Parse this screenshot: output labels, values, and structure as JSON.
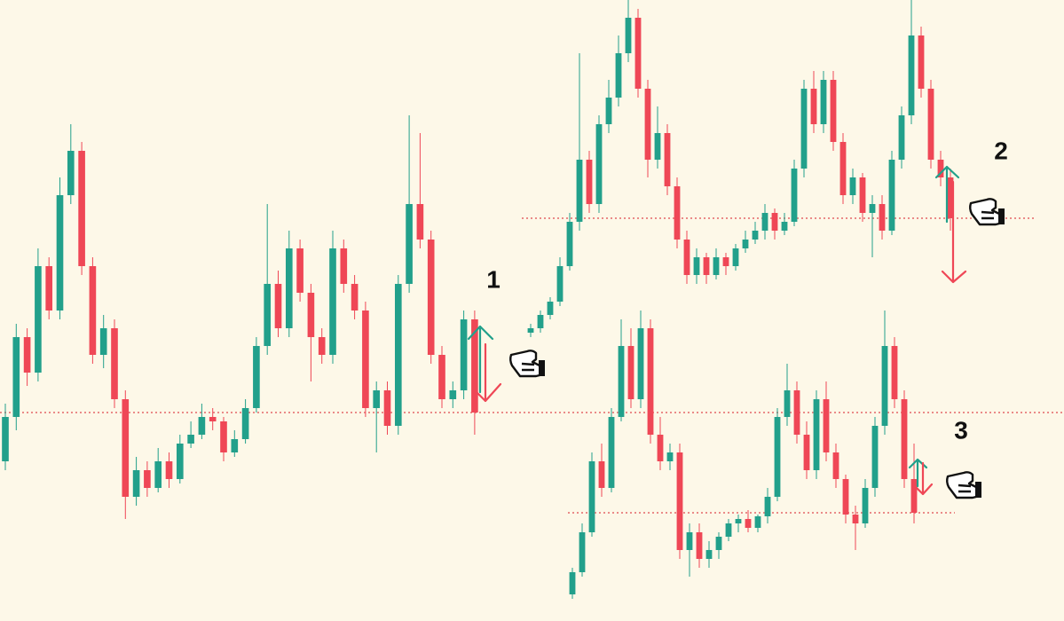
{
  "chart_data": {
    "type": "candlestick",
    "up_color": "#22a08b",
    "down_color": "#ef4756",
    "level_color": "#e0474f",
    "levels": [
      235,
      454,
      122
    ],
    "annotations": [
      "1",
      "2",
      "3"
    ],
    "series": [
      {
        "values": [
          [
            180,
            245,
            170,
            230
          ],
          [
            230,
            335,
            215,
            320
          ],
          [
            320,
            330,
            265,
            280
          ],
          [
            280,
            420,
            270,
            400
          ],
          [
            400,
            410,
            340,
            350
          ],
          [
            350,
            500,
            340,
            480
          ],
          [
            480,
            560,
            470,
            530
          ],
          [
            530,
            540,
            390,
            400
          ],
          [
            400,
            410,
            290,
            300
          ],
          [
            300,
            345,
            285,
            330
          ],
          [
            330,
            340,
            240,
            250
          ],
          [
            250,
            260,
            115,
            140
          ],
          [
            140,
            185,
            130,
            170
          ],
          [
            170,
            180,
            140,
            150
          ],
          [
            150,
            195,
            145,
            180
          ],
          [
            180,
            190,
            150,
            160
          ],
          [
            160,
            210,
            155,
            200
          ],
          [
            200,
            225,
            195,
            210
          ],
          [
            210,
            245,
            205,
            230
          ],
          [
            230,
            240,
            215,
            225
          ],
          [
            225,
            230,
            180,
            190
          ],
          [
            190,
            215,
            185,
            205
          ],
          [
            205,
            250,
            200,
            240
          ],
          [
            240,
            320,
            235,
            310
          ],
          [
            310,
            470,
            300,
            380
          ],
          [
            380,
            395,
            320,
            330
          ],
          [
            330,
            440,
            320,
            420
          ],
          [
            420,
            430,
            360,
            370
          ],
          [
            370,
            380,
            270,
            320
          ],
          [
            320,
            330,
            290,
            300
          ],
          [
            300,
            440,
            290,
            420
          ],
          [
            420,
            430,
            370,
            380
          ],
          [
            380,
            390,
            340,
            350
          ],
          [
            350,
            360,
            230,
            240
          ],
          [
            240,
            270,
            190,
            260
          ],
          [
            260,
            270,
            210,
            220
          ],
          [
            220,
            390,
            210,
            380
          ],
          [
            380,
            570,
            370,
            470
          ],
          [
            470,
            550,
            420,
            430
          ],
          [
            430,
            440,
            290,
            300
          ],
          [
            300,
            310,
            240,
            250
          ],
          [
            250,
            270,
            240,
            260
          ],
          [
            260,
            350,
            250,
            340
          ],
          [
            340,
            350,
            210,
            235
          ]
        ]
      },
      {
        "values": [
          [
            325,
            335,
            320,
            330
          ],
          [
            330,
            350,
            325,
            345
          ],
          [
            345,
            365,
            340,
            360
          ],
          [
            360,
            410,
            355,
            400
          ],
          [
            400,
            460,
            395,
            450
          ],
          [
            450,
            640,
            440,
            520
          ],
          [
            520,
            530,
            460,
            470
          ],
          [
            470,
            570,
            460,
            560
          ],
          [
            560,
            610,
            550,
            590
          ],
          [
            590,
            660,
            580,
            640
          ],
          [
            640,
            700,
            630,
            680
          ],
          [
            680,
            690,
            590,
            600
          ],
          [
            600,
            610,
            500,
            520
          ],
          [
            520,
            580,
            510,
            550
          ],
          [
            550,
            560,
            480,
            490
          ],
          [
            490,
            500,
            420,
            430
          ],
          [
            430,
            440,
            380,
            390
          ],
          [
            390,
            420,
            380,
            410
          ],
          [
            410,
            415,
            380,
            390
          ],
          [
            390,
            420,
            385,
            410
          ],
          [
            410,
            415,
            390,
            400
          ],
          [
            400,
            425,
            395,
            420
          ],
          [
            420,
            440,
            415,
            430
          ],
          [
            430,
            450,
            425,
            440
          ],
          [
            440,
            470,
            430,
            460
          ],
          [
            460,
            465,
            430,
            440
          ],
          [
            440,
            460,
            435,
            450
          ],
          [
            450,
            520,
            445,
            510
          ],
          [
            510,
            610,
            500,
            600
          ],
          [
            600,
            620,
            550,
            560
          ],
          [
            560,
            620,
            550,
            610
          ],
          [
            610,
            620,
            530,
            540
          ],
          [
            540,
            550,
            470,
            480
          ],
          [
            480,
            510,
            470,
            500
          ],
          [
            500,
            505,
            450,
            460
          ],
          [
            460,
            480,
            410,
            470
          ],
          [
            470,
            480,
            430,
            440
          ],
          [
            440,
            530,
            435,
            520
          ],
          [
            520,
            580,
            510,
            570
          ],
          [
            570,
            700,
            560,
            660
          ],
          [
            660,
            670,
            590,
            600
          ],
          [
            600,
            610,
            510,
            520
          ],
          [
            520,
            530,
            490,
            500
          ],
          [
            500,
            510,
            440,
            454
          ]
        ]
      },
      {
        "values": [
          [
            30,
            60,
            25,
            55
          ],
          [
            55,
            110,
            50,
            100
          ],
          [
            100,
            190,
            95,
            180
          ],
          [
            180,
            200,
            140,
            150
          ],
          [
            150,
            240,
            145,
            230
          ],
          [
            230,
            340,
            225,
            310
          ],
          [
            310,
            330,
            240,
            250
          ],
          [
            250,
            350,
            240,
            330
          ],
          [
            330,
            340,
            200,
            210
          ],
          [
            210,
            230,
            170,
            180
          ],
          [
            180,
            200,
            170,
            190
          ],
          [
            190,
            200,
            70,
            80
          ],
          [
            80,
            110,
            50,
            100
          ],
          [
            100,
            110,
            60,
            70
          ],
          [
            70,
            90,
            60,
            80
          ],
          [
            80,
            100,
            70,
            95
          ],
          [
            95,
            115,
            90,
            110
          ],
          [
            110,
            120,
            100,
            115
          ],
          [
            115,
            125,
            100,
            105
          ],
          [
            105,
            120,
            100,
            118
          ],
          [
            118,
            150,
            110,
            140
          ],
          [
            140,
            240,
            135,
            230
          ],
          [
            230,
            290,
            220,
            260
          ],
          [
            260,
            270,
            200,
            210
          ],
          [
            210,
            225,
            160,
            170
          ],
          [
            170,
            260,
            160,
            250
          ],
          [
            250,
            270,
            180,
            190
          ],
          [
            190,
            200,
            150,
            160
          ],
          [
            160,
            165,
            110,
            120
          ],
          [
            120,
            130,
            80,
            110
          ],
          [
            110,
            160,
            105,
            150
          ],
          [
            150,
            230,
            140,
            220
          ],
          [
            220,
            350,
            210,
            310
          ],
          [
            310,
            320,
            240,
            250
          ],
          [
            250,
            260,
            150,
            160
          ],
          [
            160,
            200,
            110,
            122
          ]
        ]
      }
    ]
  }
}
